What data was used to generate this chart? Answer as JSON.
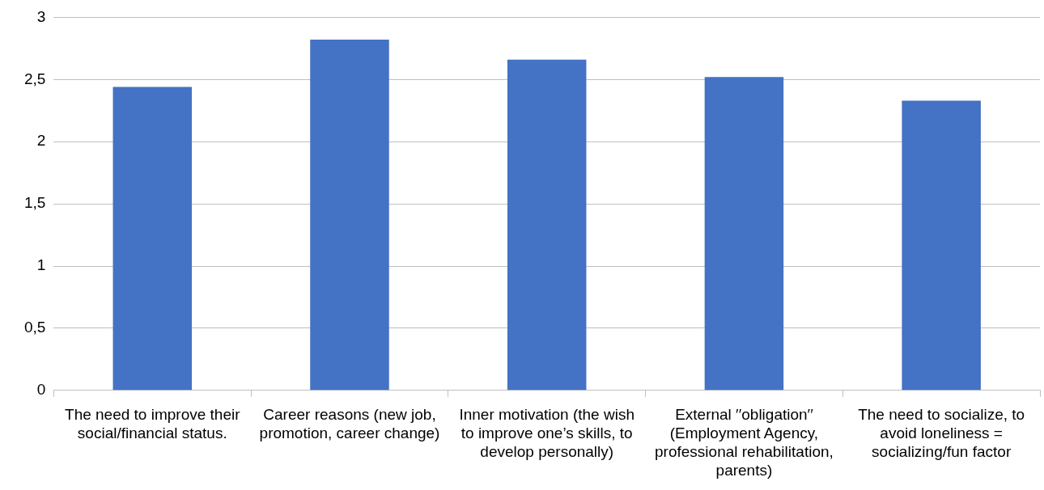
{
  "chart_data": {
    "type": "bar",
    "categories": [
      "The need to improve their social/financial status.",
      "Career reasons (new job, promotion, career change)",
      "Inner motivation (the wish to improve one’s skills, to develop personally)",
      "External ′′obligation′′ (Employment Agency, professional rehabilitation, parents)",
      "The need to socialize, to avoid loneliness = socializing/fun factor"
    ],
    "values": [
      2.44,
      2.82,
      2.66,
      2.52,
      2.33
    ],
    "color": "#4472c4",
    "ylim": [
      0,
      3
    ],
    "yticks": [
      0,
      {
        "value": 0.5,
        "label": "0,5"
      },
      1,
      {
        "value": 1.5,
        "label": "1,5"
      },
      2,
      {
        "value": 2.5,
        "label": "2,5"
      },
      3
    ],
    "grid": "y"
  }
}
